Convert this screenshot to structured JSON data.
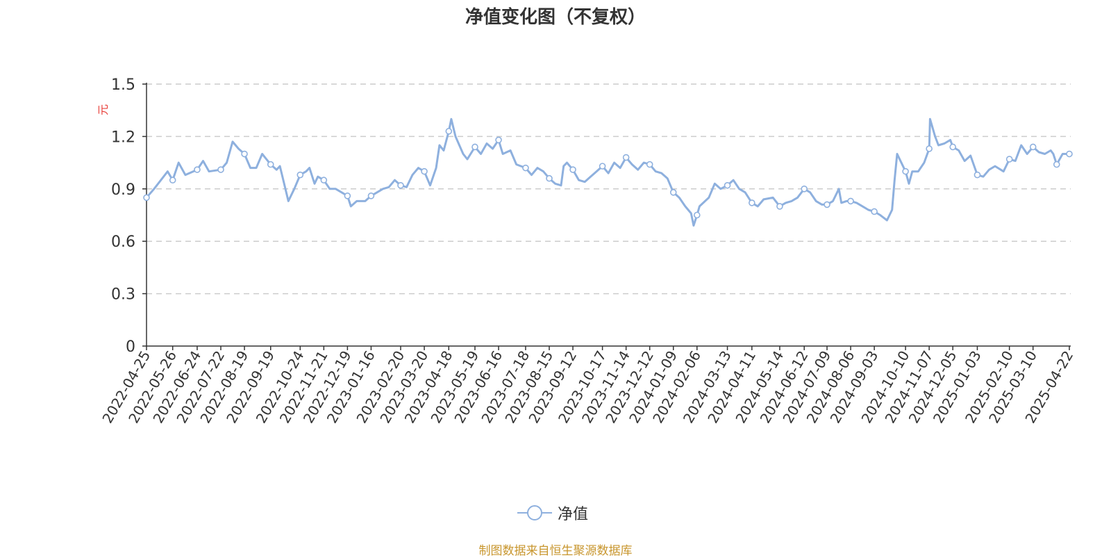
{
  "chart_data": {
    "type": "line",
    "title": "净值变化图（不复权）",
    "ylabel": "元",
    "ylim": [
      0,
      1.5
    ],
    "yticks": [
      "0",
      "0.3",
      "0.6",
      "0.9",
      "1.2",
      "1.5"
    ],
    "grid": true,
    "legend_position": "bottom-center",
    "series": [
      {
        "name": "净值",
        "color": "#8eb0de",
        "marker": "hollow-circle",
        "points": [
          [
            "2022-04-25",
            0.85
          ],
          [
            "2022-05-04",
            0.9
          ],
          [
            "2022-05-12",
            0.95
          ],
          [
            "2022-05-20",
            1.0
          ],
          [
            "2022-05-26",
            0.95
          ],
          [
            "2022-06-02",
            1.05
          ],
          [
            "2022-06-10",
            0.98
          ],
          [
            "2022-06-24",
            1.01
          ],
          [
            "2022-07-01",
            1.06
          ],
          [
            "2022-07-08",
            1.0
          ],
          [
            "2022-07-22",
            1.01
          ],
          [
            "2022-07-29",
            1.05
          ],
          [
            "2022-08-05",
            1.17
          ],
          [
            "2022-08-12",
            1.13
          ],
          [
            "2022-08-19",
            1.1
          ],
          [
            "2022-08-26",
            1.02
          ],
          [
            "2022-09-02",
            1.02
          ],
          [
            "2022-09-09",
            1.1
          ],
          [
            "2022-09-19",
            1.04
          ],
          [
            "2022-09-26",
            1.01
          ],
          [
            "2022-09-30",
            1.03
          ],
          [
            "2022-10-10",
            0.83
          ],
          [
            "2022-10-17",
            0.9
          ],
          [
            "2022-10-24",
            0.98
          ],
          [
            "2022-10-31",
            1.0
          ],
          [
            "2022-11-04",
            1.02
          ],
          [
            "2022-11-10",
            0.93
          ],
          [
            "2022-11-14",
            0.97
          ],
          [
            "2022-11-21",
            0.95
          ],
          [
            "2022-11-28",
            0.9
          ],
          [
            "2022-12-05",
            0.9
          ],
          [
            "2022-12-12",
            0.88
          ],
          [
            "2022-12-19",
            0.86
          ],
          [
            "2022-12-23",
            0.8
          ],
          [
            "2022-12-30",
            0.83
          ],
          [
            "2023-01-09",
            0.83
          ],
          [
            "2023-01-16",
            0.86
          ],
          [
            "2023-01-30",
            0.9
          ],
          [
            "2023-02-06",
            0.91
          ],
          [
            "2023-02-13",
            0.95
          ],
          [
            "2023-02-20",
            0.92
          ],
          [
            "2023-02-27",
            0.91
          ],
          [
            "2023-03-06",
            0.98
          ],
          [
            "2023-03-13",
            1.02
          ],
          [
            "2023-03-20",
            1.0
          ],
          [
            "2023-03-27",
            0.92
          ],
          [
            "2023-04-03",
            1.02
          ],
          [
            "2023-04-07",
            1.15
          ],
          [
            "2023-04-12",
            1.12
          ],
          [
            "2023-04-18",
            1.23
          ],
          [
            "2023-04-21",
            1.3
          ],
          [
            "2023-04-26",
            1.2
          ],
          [
            "2023-05-05",
            1.1
          ],
          [
            "2023-05-10",
            1.07
          ],
          [
            "2023-05-19",
            1.14
          ],
          [
            "2023-05-26",
            1.1
          ],
          [
            "2023-06-02",
            1.16
          ],
          [
            "2023-06-09",
            1.13
          ],
          [
            "2023-06-16",
            1.18
          ],
          [
            "2023-06-21",
            1.1
          ],
          [
            "2023-06-30",
            1.12
          ],
          [
            "2023-07-07",
            1.04
          ],
          [
            "2023-07-18",
            1.02
          ],
          [
            "2023-07-25",
            0.98
          ],
          [
            "2023-08-01",
            1.02
          ],
          [
            "2023-08-08",
            1.0
          ],
          [
            "2023-08-15",
            0.96
          ],
          [
            "2023-08-22",
            0.93
          ],
          [
            "2023-08-29",
            0.92
          ],
          [
            "2023-09-01",
            1.03
          ],
          [
            "2023-09-05",
            1.05
          ],
          [
            "2023-09-12",
            1.01
          ],
          [
            "2023-09-19",
            0.95
          ],
          [
            "2023-09-26",
            0.94
          ],
          [
            "2023-10-10",
            1.0
          ],
          [
            "2023-10-17",
            1.03
          ],
          [
            "2023-10-24",
            0.99
          ],
          [
            "2023-10-31",
            1.05
          ],
          [
            "2023-11-07",
            1.02
          ],
          [
            "2023-11-14",
            1.08
          ],
          [
            "2023-11-21",
            1.04
          ],
          [
            "2023-11-28",
            1.01
          ],
          [
            "2023-12-05",
            1.05
          ],
          [
            "2023-12-12",
            1.04
          ],
          [
            "2023-12-19",
            1.0
          ],
          [
            "2023-12-26",
            0.99
          ],
          [
            "2024-01-02",
            0.96
          ],
          [
            "2024-01-09",
            0.88
          ],
          [
            "2024-01-16",
            0.85
          ],
          [
            "2024-01-23",
            0.8
          ],
          [
            "2024-01-30",
            0.76
          ],
          [
            "2024-02-02",
            0.69
          ],
          [
            "2024-02-06",
            0.75
          ],
          [
            "2024-02-09",
            0.8
          ],
          [
            "2024-02-20",
            0.85
          ],
          [
            "2024-02-27",
            0.93
          ],
          [
            "2024-03-05",
            0.9
          ],
          [
            "2024-03-13",
            0.92
          ],
          [
            "2024-03-20",
            0.95
          ],
          [
            "2024-03-27",
            0.9
          ],
          [
            "2024-04-03",
            0.88
          ],
          [
            "2024-04-11",
            0.82
          ],
          [
            "2024-04-18",
            0.8
          ],
          [
            "2024-04-25",
            0.84
          ],
          [
            "2024-05-06",
            0.85
          ],
          [
            "2024-05-14",
            0.8
          ],
          [
            "2024-05-21",
            0.82
          ],
          [
            "2024-05-28",
            0.83
          ],
          [
            "2024-06-04",
            0.85
          ],
          [
            "2024-06-12",
            0.9
          ],
          [
            "2024-06-19",
            0.88
          ],
          [
            "2024-06-26",
            0.83
          ],
          [
            "2024-07-03",
            0.81
          ],
          [
            "2024-07-09",
            0.81
          ],
          [
            "2024-07-16",
            0.83
          ],
          [
            "2024-07-23",
            0.9
          ],
          [
            "2024-07-26",
            0.82
          ],
          [
            "2024-08-01",
            0.83
          ],
          [
            "2024-08-06",
            0.83
          ],
          [
            "2024-08-13",
            0.82
          ],
          [
            "2024-08-20",
            0.8
          ],
          [
            "2024-08-27",
            0.78
          ],
          [
            "2024-09-03",
            0.77
          ],
          [
            "2024-09-10",
            0.75
          ],
          [
            "2024-09-18",
            0.72
          ],
          [
            "2024-09-24",
            0.78
          ],
          [
            "2024-09-27",
            0.95
          ],
          [
            "2024-09-30",
            1.1
          ],
          [
            "2024-10-10",
            1.0
          ],
          [
            "2024-10-14",
            0.93
          ],
          [
            "2024-10-18",
            1.0
          ],
          [
            "2024-10-25",
            1.0
          ],
          [
            "2024-11-01",
            1.05
          ],
          [
            "2024-11-07",
            1.13
          ],
          [
            "2024-11-08",
            1.3
          ],
          [
            "2024-11-14",
            1.2
          ],
          [
            "2024-11-18",
            1.15
          ],
          [
            "2024-11-25",
            1.16
          ],
          [
            "2024-12-02",
            1.18
          ],
          [
            "2024-12-05",
            1.14
          ],
          [
            "2024-12-12",
            1.12
          ],
          [
            "2024-12-19",
            1.06
          ],
          [
            "2024-12-26",
            1.09
          ],
          [
            "2025-01-03",
            0.98
          ],
          [
            "2025-01-10",
            0.97
          ],
          [
            "2025-01-17",
            1.01
          ],
          [
            "2025-01-24",
            1.03
          ],
          [
            "2025-02-03",
            1.0
          ],
          [
            "2025-02-10",
            1.07
          ],
          [
            "2025-02-17",
            1.06
          ],
          [
            "2025-02-24",
            1.15
          ],
          [
            "2025-03-03",
            1.1
          ],
          [
            "2025-03-10",
            1.14
          ],
          [
            "2025-03-17",
            1.11
          ],
          [
            "2025-03-24",
            1.1
          ],
          [
            "2025-03-31",
            1.12
          ],
          [
            "2025-04-03",
            1.1
          ],
          [
            "2025-04-07",
            1.04
          ],
          [
            "2025-04-14",
            1.1
          ],
          [
            "2025-04-22",
            1.1
          ]
        ],
        "marked_points": [
          [
            "2022-04-25",
            0.85
          ],
          [
            "2022-05-26",
            0.95
          ],
          [
            "2022-06-24",
            1.01
          ],
          [
            "2022-07-22",
            1.01
          ],
          [
            "2022-08-19",
            1.1
          ],
          [
            "2022-09-19",
            1.04
          ],
          [
            "2022-10-24",
            0.98
          ],
          [
            "2022-11-21",
            0.95
          ],
          [
            "2022-12-19",
            0.86
          ],
          [
            "2023-01-16",
            0.86
          ],
          [
            "2023-02-20",
            0.92
          ],
          [
            "2023-03-20",
            1.0
          ],
          [
            "2023-04-18",
            1.23
          ],
          [
            "2023-05-19",
            1.14
          ],
          [
            "2023-06-16",
            1.18
          ],
          [
            "2023-07-18",
            1.02
          ],
          [
            "2023-08-15",
            0.96
          ],
          [
            "2023-09-12",
            1.01
          ],
          [
            "2023-10-17",
            1.03
          ],
          [
            "2023-11-14",
            1.08
          ],
          [
            "2023-12-12",
            1.04
          ],
          [
            "2024-01-09",
            0.88
          ],
          [
            "2024-02-06",
            0.75
          ],
          [
            "2024-03-13",
            0.92
          ],
          [
            "2024-04-11",
            0.82
          ],
          [
            "2024-05-14",
            0.8
          ],
          [
            "2024-06-12",
            0.9
          ],
          [
            "2024-07-09",
            0.81
          ],
          [
            "2024-08-06",
            0.83
          ],
          [
            "2024-09-03",
            0.77
          ],
          [
            "2024-10-10",
            1.0
          ],
          [
            "2024-11-07",
            1.13
          ],
          [
            "2024-12-05",
            1.14
          ],
          [
            "2025-01-03",
            0.98
          ],
          [
            "2025-02-10",
            1.07
          ],
          [
            "2025-03-10",
            1.14
          ],
          [
            "2025-04-07",
            1.04
          ],
          [
            "2025-04-22",
            1.1
          ]
        ]
      }
    ],
    "x_tick_labels": [
      "2022-04-25",
      "2022-05-26",
      "2022-06-24",
      "2022-07-22",
      "2022-08-19",
      "2022-09-19",
      "2022-10-24",
      "2022-11-21",
      "2022-12-19",
      "2023-01-16",
      "2023-02-20",
      "2023-03-20",
      "2023-04-18",
      "2023-05-19",
      "2023-06-16",
      "2023-07-18",
      "2023-08-15",
      "2023-09-12",
      "2023-10-17",
      "2023-11-14",
      "2023-12-12",
      "2024-01-09",
      "2024-02-06",
      "2024-03-13",
      "2024-04-11",
      "2024-05-14",
      "2024-06-12",
      "2024-07-09",
      "2024-08-06",
      "2024-09-03",
      "2024-10-10",
      "2024-11-07",
      "2024-12-05",
      "2025-01-03",
      "2025-02-10",
      "2025-03-10",
      "2025-04-22"
    ],
    "source_note": "制图数据来自恒生聚源数据库"
  },
  "colors": {
    "line": "#8eb0de",
    "axis": "#333333",
    "grid": "#cccccc",
    "ylabel": "#e8413c",
    "source": "#c8962e"
  }
}
